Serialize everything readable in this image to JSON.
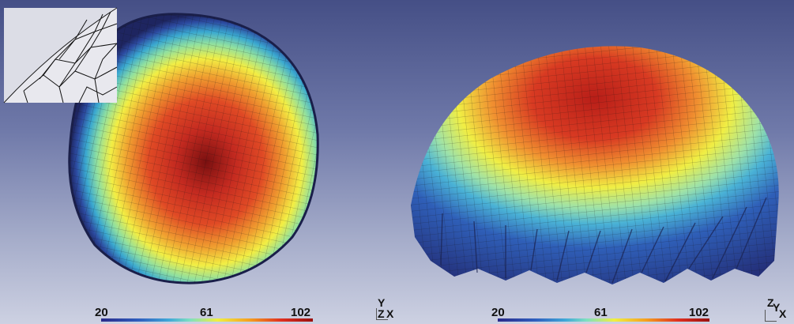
{
  "views": [
    {
      "id": "top-view",
      "colorbar": {
        "min": "20",
        "mid": "61",
        "max": "102"
      },
      "axes": {
        "up": "Y",
        "out": "Z",
        "right": "X"
      }
    },
    {
      "id": "side-view",
      "colorbar": {
        "min": "20",
        "mid": "61",
        "max": "102"
      },
      "axes": {
        "up": "Z",
        "out": "Y",
        "right": "X"
      }
    }
  ],
  "colors": {
    "low": "#2a2a8a",
    "mid_low": "#40a8d8",
    "mid": "#f0f040",
    "high": "#e03020",
    "max": "#9a1010"
  }
}
